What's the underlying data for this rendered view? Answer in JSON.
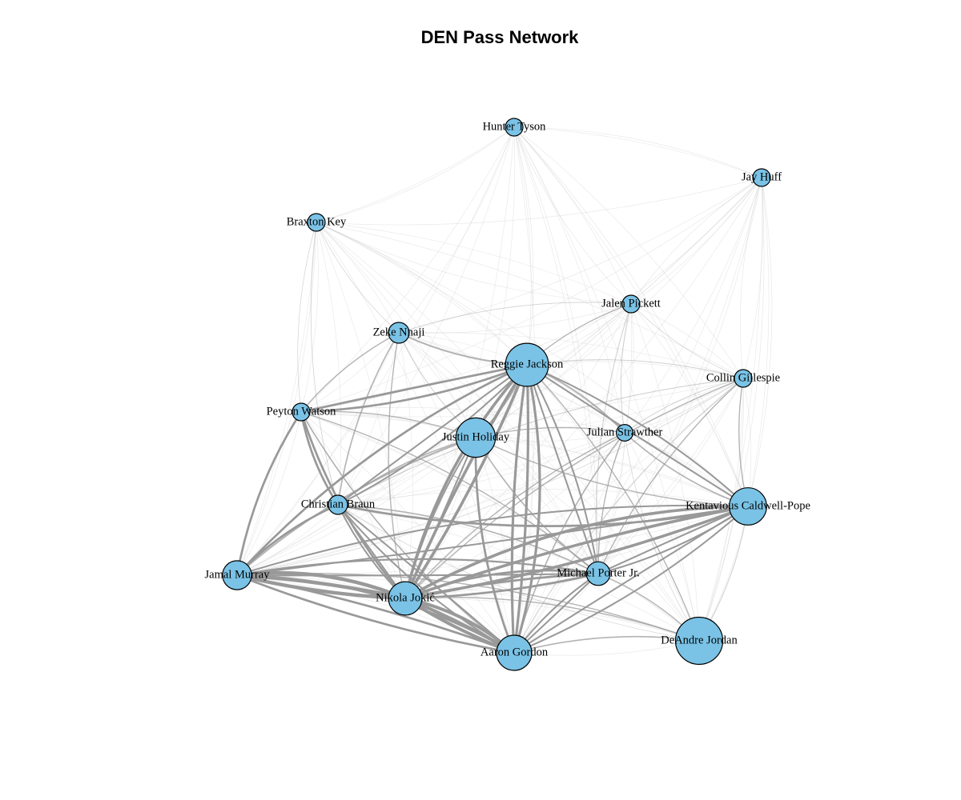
{
  "title": "DEN Pass Network",
  "colors": {
    "node_fill": "#7ac3e6",
    "node_stroke": "#000000",
    "edge": "#999999",
    "background": "#ffffff"
  },
  "nodes": [
    {
      "id": "hunter_tyson",
      "label": "Hunter Tyson",
      "size": 1
    },
    {
      "id": "jay_huff",
      "label": "Jay Huff",
      "size": 1
    },
    {
      "id": "braxton_key",
      "label": "Braxton Key",
      "size": 1
    },
    {
      "id": "jalen_pickett",
      "label": "Jalen Pickett",
      "size": 1
    },
    {
      "id": "zeke_nnaji",
      "label": "Zeke Nnaji",
      "size": 1.4
    },
    {
      "id": "reggie_jackson",
      "label": "Reggie Jackson",
      "size": 6
    },
    {
      "id": "collin_gillespie",
      "label": "Collin Gillespie",
      "size": 1
    },
    {
      "id": "peyton_watson",
      "label": "Peyton Watson",
      "size": 1
    },
    {
      "id": "julian_strawther",
      "label": "Julian Strawther",
      "size": 0.9
    },
    {
      "id": "justin_holiday",
      "label": "Justin Holiday",
      "size": 5
    },
    {
      "id": "christian_braun",
      "label": "Christian Braun",
      "size": 1.2
    },
    {
      "id": "kcp",
      "label": "Kentavious Caldwell-Pope",
      "size": 4.5
    },
    {
      "id": "jamal_murray",
      "label": "Jamal Murray",
      "size": 2.7
    },
    {
      "id": "michael_porter",
      "label": "Michael Porter Jr.",
      "size": 1.8
    },
    {
      "id": "nikola_jokic",
      "label": "Nikola Jokić",
      "size": 3.6
    },
    {
      "id": "deandre_jordan",
      "label": "DeAndre Jordan",
      "size": 7.2
    },
    {
      "id": "aaron_gordon",
      "label": "Aaron Gordon",
      "size": 4
    }
  ],
  "edges": [
    {
      "source": "jamal_murray",
      "target": "nikola_jokic",
      "weight": 10
    },
    {
      "source": "jamal_murray",
      "target": "aaron_gordon",
      "weight": 6
    },
    {
      "source": "jamal_murray",
      "target": "michael_porter",
      "weight": 3
    },
    {
      "source": "jamal_murray",
      "target": "kcp",
      "weight": 3
    },
    {
      "source": "jamal_murray",
      "target": "christian_braun",
      "weight": 2
    },
    {
      "source": "jamal_murray",
      "target": "peyton_watson",
      "weight": 2
    },
    {
      "source": "jamal_murray",
      "target": "reggie_jackson",
      "weight": 2
    },
    {
      "source": "jamal_murray",
      "target": "justin_holiday",
      "weight": 1.5
    },
    {
      "source": "jamal_murray",
      "target": "deandre_jordan",
      "weight": 1
    },
    {
      "source": "nikola_jokic",
      "target": "aaron_gordon",
      "weight": 9
    },
    {
      "source": "nikola_jokic",
      "target": "kcp",
      "weight": 8
    },
    {
      "source": "nikola_jokic",
      "target": "michael_porter",
      "weight": 6
    },
    {
      "source": "nikola_jokic",
      "target": "reggie_jackson",
      "weight": 8
    },
    {
      "source": "nikola_jokic",
      "target": "justin_holiday",
      "weight": 3
    },
    {
      "source": "nikola_jokic",
      "target": "christian_braun",
      "weight": 3
    },
    {
      "source": "nikola_jokic",
      "target": "peyton_watson",
      "weight": 2
    },
    {
      "source": "nikola_jokic",
      "target": "julian_strawther",
      "weight": 1
    },
    {
      "source": "nikola_jokic",
      "target": "collin_gillespie",
      "weight": 1
    },
    {
      "source": "nikola_jokic",
      "target": "zeke_nnaji",
      "weight": 1
    },
    {
      "source": "nikola_jokic",
      "target": "deandre_jordan",
      "weight": 1
    },
    {
      "source": "reggie_jackson",
      "target": "aaron_gordon",
      "weight": 7
    },
    {
      "source": "reggie_jackson",
      "target": "peyton_watson",
      "weight": 4
    },
    {
      "source": "reggie_jackson",
      "target": "christian_braun",
      "weight": 3
    },
    {
      "source": "reggie_jackson",
      "target": "kcp",
      "weight": 3
    },
    {
      "source": "reggie_jackson",
      "target": "michael_porter",
      "weight": 3
    },
    {
      "source": "reggie_jackson",
      "target": "zeke_nnaji",
      "weight": 1.5
    },
    {
      "source": "reggie_jackson",
      "target": "julian_strawther",
      "weight": 1.5
    },
    {
      "source": "reggie_jackson",
      "target": "jalen_pickett",
      "weight": 1
    },
    {
      "source": "reggie_jackson",
      "target": "collin_gillespie",
      "weight": 0.8
    },
    {
      "source": "reggie_jackson",
      "target": "deandre_jordan",
      "weight": 1
    },
    {
      "source": "reggie_jackson",
      "target": "justin_holiday",
      "weight": 1.2
    },
    {
      "source": "kcp",
      "target": "aaron_gordon",
      "weight": 3
    },
    {
      "source": "kcp",
      "target": "michael_porter",
      "weight": 3
    },
    {
      "source": "kcp",
      "target": "christian_braun",
      "weight": 2
    },
    {
      "source": "kcp",
      "target": "julian_strawther",
      "weight": 1.2
    },
    {
      "source": "kcp",
      "target": "collin_gillespie",
      "weight": 1
    },
    {
      "source": "kcp",
      "target": "justin_holiday",
      "weight": 1
    },
    {
      "source": "kcp",
      "target": "deandre_jordan",
      "weight": 0.8
    },
    {
      "source": "aaron_gordon",
      "target": "michael_porter",
      "weight": 3
    },
    {
      "source": "aaron_gordon",
      "target": "christian_braun",
      "weight": 3
    },
    {
      "source": "aaron_gordon",
      "target": "justin_holiday",
      "weight": 2
    },
    {
      "source": "aaron_gordon",
      "target": "deandre_jordan",
      "weight": 1.2
    },
    {
      "source": "aaron_gordon",
      "target": "peyton_watson",
      "weight": 1.2
    },
    {
      "source": "aaron_gordon",
      "target": "julian_strawther",
      "weight": 1.2
    },
    {
      "source": "aaron_gordon",
      "target": "collin_gillespie",
      "weight": 0.8
    },
    {
      "source": "christian_braun",
      "target": "peyton_watson",
      "weight": 2
    },
    {
      "source": "christian_braun",
      "target": "zeke_nnaji",
      "weight": 1.2
    },
    {
      "source": "christian_braun",
      "target": "justin_holiday",
      "weight": 1.2
    },
    {
      "source": "christian_braun",
      "target": "michael_porter",
      "weight": 1.2
    },
    {
      "source": "christian_braun",
      "target": "braxton_key",
      "weight": 0.6
    },
    {
      "source": "christian_braun",
      "target": "collin_gillespie",
      "weight": 0.8
    },
    {
      "source": "peyton_watson",
      "target": "zeke_nnaji",
      "weight": 1
    },
    {
      "source": "peyton_watson",
      "target": "justin_holiday",
      "weight": 1
    },
    {
      "source": "peyton_watson",
      "target": "michael_porter",
      "weight": 1
    },
    {
      "source": "peyton_watson",
      "target": "braxton_key",
      "weight": 0.5
    },
    {
      "source": "michael_porter",
      "target": "julian_strawther",
      "weight": 1
    },
    {
      "source": "michael_porter",
      "target": "collin_gillespie",
      "weight": 1
    },
    {
      "source": "michael_porter",
      "target": "deandre_jordan",
      "weight": 1
    },
    {
      "source": "michael_porter",
      "target": "justin_holiday",
      "weight": 1.2
    },
    {
      "source": "michael_porter",
      "target": "jalen_pickett",
      "weight": 0.8
    },
    {
      "source": "justin_holiday",
      "target": "julian_strawther",
      "weight": 1
    },
    {
      "source": "justin_holiday",
      "target": "zeke_nnaji",
      "weight": 0.8
    },
    {
      "source": "zeke_nnaji",
      "target": "jalen_pickett",
      "weight": 0.6
    },
    {
      "source": "zeke_nnaji",
      "target": "braxton_key",
      "weight": 0.5
    },
    {
      "source": "julian_strawther",
      "target": "jalen_pickett",
      "weight": 0.7
    },
    {
      "source": "julian_strawther",
      "target": "collin_gillespie",
      "weight": 0.7
    },
    {
      "source": "collin_gillespie",
      "target": "jay_huff",
      "weight": 0.4
    },
    {
      "source": "collin_gillespie",
      "target": "jalen_pickett",
      "weight": 0.5
    },
    {
      "source": "jalen_pickett",
      "target": "jay_huff",
      "weight": 0.4
    },
    {
      "source": "jalen_pickett",
      "target": "braxton_key",
      "weight": 0.4
    },
    {
      "source": "jalen_pickett",
      "target": "hunter_tyson",
      "weight": 0.4
    },
    {
      "source": "hunter_tyson",
      "target": "braxton_key",
      "weight": 0.2
    },
    {
      "source": "hunter_tyson",
      "target": "jay_huff",
      "weight": 0.2
    },
    {
      "source": "hunter_tyson",
      "target": "reggie_jackson",
      "weight": 0.3
    },
    {
      "source": "hunter_tyson",
      "target": "michael_porter",
      "weight": 0.3
    },
    {
      "source": "hunter_tyson",
      "target": "kcp",
      "weight": 0.3
    },
    {
      "source": "jay_huff",
      "target": "kcp",
      "weight": 0.3
    },
    {
      "source": "jay_huff",
      "target": "deandre_jordan",
      "weight": 0.3
    },
    {
      "source": "jay_huff",
      "target": "michael_porter",
      "weight": 0.3
    },
    {
      "source": "braxton_key",
      "target": "reggie_jackson",
      "weight": 0.4
    },
    {
      "source": "braxton_key",
      "target": "jamal_murray",
      "weight": 0.3
    },
    {
      "source": "collin_gillespie",
      "target": "jamal_murray",
      "weight": 0.5
    },
    {
      "source": "collin_gillespie",
      "target": "deandre_jordan",
      "weight": 0.4
    },
    {
      "source": "deandre_jordan",
      "target": "julian_strawther",
      "weight": 0.5
    },
    {
      "source": "deandre_jordan",
      "target": "christian_braun",
      "weight": 0.5
    }
  ]
}
